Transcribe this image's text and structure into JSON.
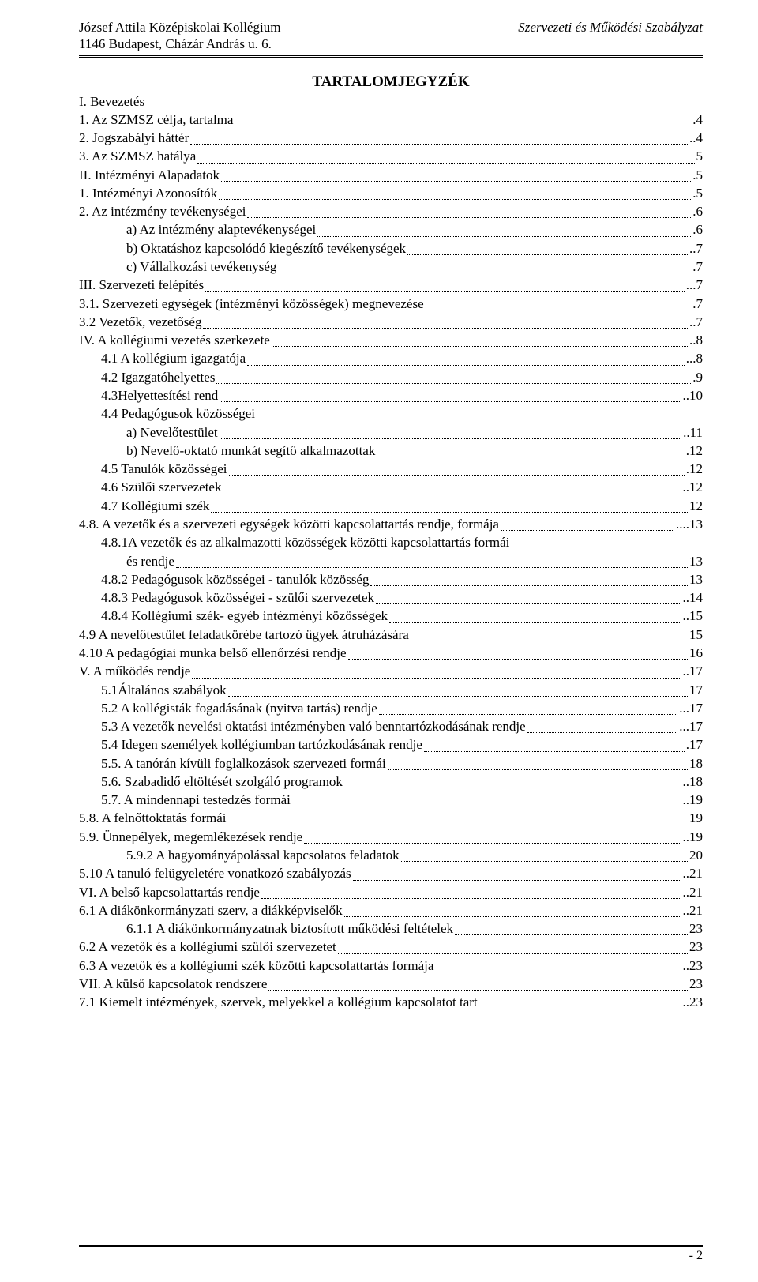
{
  "header": {
    "left_line1": "József Attila Középiskolai Kollégium",
    "left_line2": "1146 Budapest, Cházár András u. 6.",
    "right": "Szervezeti és Működési Szabályzat"
  },
  "toc_title": "TARTALOMJEGYZÉK",
  "entries": [
    {
      "text": "I. Bevezetés",
      "page": "",
      "indent": 0,
      "nodots": true
    },
    {
      "text": "1.  Az SZMSZ célja, tartalma",
      "page": ".4",
      "indent": 0
    },
    {
      "text": "2.  Jogszabályi háttér",
      "page": "..4",
      "indent": 0
    },
    {
      "text": "3.  Az SZMSZ hatálya",
      "page": "5",
      "indent": 0
    },
    {
      "text": "II. Intézményi Alapadatok",
      "page": ".5",
      "indent": 0
    },
    {
      "text": "1.  Intézményi Azonosítók",
      "page": ".5",
      "indent": 0
    },
    {
      "text": "2.  Az intézmény tevékenységei",
      "page": ".6",
      "indent": 0
    },
    {
      "text": "a)  Az intézmény alaptevékenységei",
      "page": ".6",
      "indent": 2
    },
    {
      "text": "b)  Oktatáshoz kapcsolódó kiegészítő tevékenységek",
      "page": "..7",
      "indent": 2
    },
    {
      "text": "c)  Vállalkozási tevékenység",
      "page": ".7",
      "indent": 2
    },
    {
      "text": "III. Szervezeti felépítés",
      "page": "...7",
      "indent": 0
    },
    {
      "text": "3.1. Szervezeti egységek (intézményi közösségek) megnevezése",
      "page": ".7",
      "indent": 0
    },
    {
      "text": "3.2  Vezetők, vezetőség",
      "page": "..7",
      "indent": 0
    },
    {
      "text": "IV. A kollégiumi vezetés szerkezete",
      "page": "..8",
      "indent": 0
    },
    {
      "text": "4.1 A kollégium igazgatója",
      "page": "...8",
      "indent": 1
    },
    {
      "text": "4.2 Igazgatóhelyettes",
      "page": ".9",
      "indent": 1
    },
    {
      "text": "4.3Helyettesítési rend",
      "page": "..10",
      "indent": 1
    },
    {
      "text": "4.4 Pedagógusok közösségei",
      "page": "",
      "indent": 1,
      "nodots": true
    },
    {
      "text": "a)  Nevelőtestület",
      "page": "..11",
      "indent": 2
    },
    {
      "text": "b)  Nevelő-oktató munkát segítő alkalmazottak",
      "page": ".12",
      "indent": 2
    },
    {
      "text": "4.5 Tanulók közösségei",
      "page": ".12",
      "indent": 1
    },
    {
      "text": "4.6 Szülői szervezetek",
      "page": "..12",
      "indent": 1
    },
    {
      "text": "4.7 Kollégiumi szék",
      "page": "12",
      "indent": 1
    },
    {
      "text": "4.8.  A vezetők és a szervezeti egységek közötti kapcsolattartás rendje, formája",
      "page": "....13",
      "indent": 0
    },
    {
      "text": "4.8.1A vezetők és az alkalmazotti közösségek közötti kapcsolattartás formái",
      "page": "",
      "indent": 1,
      "nodots": true
    },
    {
      "text": "       és rendje",
      "page": "13",
      "indent": 2
    },
    {
      "text": "4.8.2 Pedagógusok közösségei - tanulók közösség",
      "page": "13",
      "indent": 1
    },
    {
      "text": "4.8.3 Pedagógusok közösségei - szülői szervezetek",
      "page": "..14",
      "indent": 1
    },
    {
      "text": "4.8.4 Kollégiumi szék- egyéb intézményi közösségek",
      "page": "..15",
      "indent": 1
    },
    {
      "text": "4.9  A nevelőtestület feladatkörébe tartozó ügyek átruházására",
      "page": "15",
      "indent": 0
    },
    {
      "text": "4.10 A pedagógiai munka belső ellenőrzési rendje",
      "page": "16",
      "indent": 0
    },
    {
      "text": "V. A működés rendje",
      "page": "..17",
      "indent": 0
    },
    {
      "text": "5.1Általános szabályok",
      "page": "17",
      "indent": 1
    },
    {
      "text": "5.2 A kollégisták fogadásának (nyitva tartás) rendje",
      "page": "...17",
      "indent": 1
    },
    {
      "text": "5.3 A vezetők nevelési oktatási intézményben való benntartózkodásának rendje",
      "page": "...17",
      "indent": 1
    },
    {
      "text": "5.4 Idegen személyek kollégiumban tartózkodásának rendje",
      "page": ".17",
      "indent": 1
    },
    {
      "text": "5.5. A tanórán kívüli foglalkozások szervezeti formái",
      "page": "18",
      "indent": 1
    },
    {
      "text": "5.6. Szabadidő eltöltését szolgáló programok",
      "page": "..18",
      "indent": 1
    },
    {
      "text": "5.7. A mindennapi testedzés formái",
      "page": "..19",
      "indent": 1
    },
    {
      "text": "5.8. A felnőttoktatás formái",
      "page": "19",
      "indent": 0
    },
    {
      "text": "5.9. Ünnepélyek, megemlékezések rendje",
      "page": "..19",
      "indent": 0
    },
    {
      "text": "5.9.2 A hagyományápolással kapcsolatos feladatok",
      "page": "20",
      "indent": 2
    },
    {
      "text": "5.10 A tanuló felügyeletére vonatkozó szabályozás",
      "page": "..21",
      "indent": 0
    },
    {
      "text": "VI. A belső kapcsolattartás rendje",
      "page": "..21",
      "indent": 0
    },
    {
      "text": "6.1 A diákönkormányzati szerv, a diákképviselők",
      "page": "..21",
      "indent": 0
    },
    {
      "text": "6.1.1 A diákönkormányzatnak biztosított működési feltételek",
      "page": "23",
      "indent": 2
    },
    {
      "text": "6.2 A vezetők és a kollégiumi szülői szervezetet",
      "page": "23",
      "indent": 0
    },
    {
      "text": "6.3 A vezetők és a kollégiumi szék közötti kapcsolattartás formája",
      "page": "..23",
      "indent": 0
    },
    {
      "text": "VII. A külső kapcsolatok rendszere",
      "page": "23",
      "indent": 0
    },
    {
      "text": "7.1 Kiemelt intézmények, szervek, melyekkel a kollégium kapcsolatot tart",
      "page": "..23",
      "indent": 0
    }
  ],
  "page_number": "- 2"
}
